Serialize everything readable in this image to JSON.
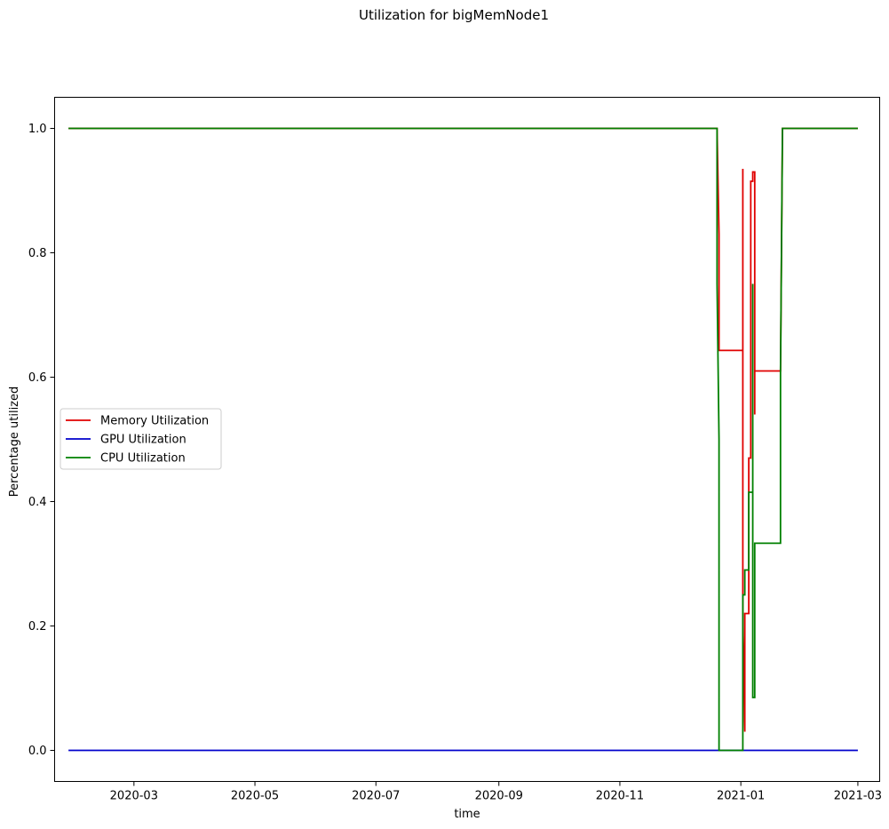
{
  "chart_data": {
    "type": "line",
    "title": "Utilization for bigMemNode1",
    "xlabel": "time",
    "ylabel": "Percentage utilized",
    "x_ticks": [
      "2020-03",
      "2020-05",
      "2020-07",
      "2020-09",
      "2020-11",
      "2021-01",
      "2021-03"
    ],
    "y_ticks": [
      "0.0",
      "0.2",
      "0.4",
      "0.6",
      "0.8",
      "1.0"
    ],
    "xlim": [
      "2020-01-21",
      "2021-03-12"
    ],
    "ylim": [
      -0.05,
      1.05
    ],
    "grid": false,
    "legend_position": "center-left",
    "series": [
      {
        "name": "Memory Utilization",
        "color": "#e00000",
        "points": [
          [
            "2020-01-28",
            1.0
          ],
          [
            "2020-12-20",
            1.0
          ],
          [
            "2020-12-21",
            0.83
          ],
          [
            "2020-12-21",
            0.643
          ],
          [
            "2021-01-02",
            0.643
          ],
          [
            "2021-01-02",
            0.935
          ],
          [
            "2021-01-02",
            0.2
          ],
          [
            "2021-01-03",
            0.03
          ],
          [
            "2021-01-03",
            0.22
          ],
          [
            "2021-01-05",
            0.22
          ],
          [
            "2021-01-05",
            0.47
          ],
          [
            "2021-01-06",
            0.47
          ],
          [
            "2021-01-06",
            0.915
          ],
          [
            "2021-01-07",
            0.915
          ],
          [
            "2021-01-07",
            0.93
          ],
          [
            "2021-01-08",
            0.93
          ],
          [
            "2021-01-08",
            0.54
          ],
          [
            "2021-01-08",
            0.61
          ],
          [
            "2021-01-21",
            0.61
          ],
          [
            "2021-01-22",
            1.0
          ],
          [
            "2021-03-01",
            1.0
          ]
        ]
      },
      {
        "name": "GPU Utilization",
        "color": "#0000cc",
        "points": [
          [
            "2020-01-28",
            0.0
          ],
          [
            "2021-03-01",
            0.0
          ]
        ]
      },
      {
        "name": "CPU Utilization",
        "color": "#008000",
        "points": [
          [
            "2020-01-28",
            1.0
          ],
          [
            "2020-12-20",
            1.0
          ],
          [
            "2020-12-20",
            0.75
          ],
          [
            "2020-12-21",
            0.5
          ],
          [
            "2020-12-21",
            0.0
          ],
          [
            "2021-01-02",
            0.0
          ],
          [
            "2021-01-02",
            0.25
          ],
          [
            "2021-01-03",
            0.25
          ],
          [
            "2021-01-03",
            0.29
          ],
          [
            "2021-01-05",
            0.29
          ],
          [
            "2021-01-05",
            0.415
          ],
          [
            "2021-01-07",
            0.415
          ],
          [
            "2021-01-07",
            0.75
          ],
          [
            "2021-01-07",
            0.085
          ],
          [
            "2021-01-08",
            0.085
          ],
          [
            "2021-01-08",
            0.333
          ],
          [
            "2021-01-21",
            0.333
          ],
          [
            "2021-01-21",
            0.61
          ],
          [
            "2021-01-22",
            1.0
          ],
          [
            "2021-03-01",
            1.0
          ]
        ]
      }
    ]
  }
}
